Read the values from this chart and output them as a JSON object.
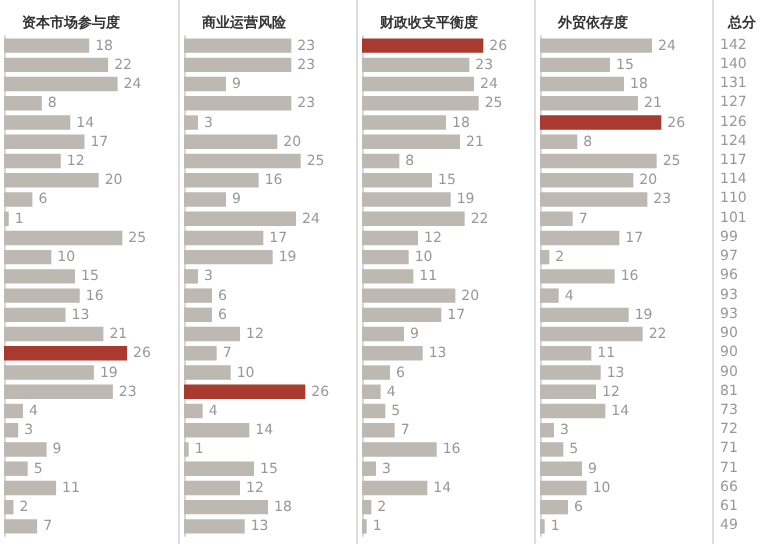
{
  "chart_data": [
    {
      "type": "bar",
      "orientation": "horizontal",
      "title": "资本市场参与度",
      "data_labels": true,
      "categories": [
        null,
        null,
        null,
        null,
        null,
        null,
        null,
        null,
        null,
        null,
        null,
        null,
        null,
        null,
        null,
        null,
        null,
        null,
        null,
        null,
        null,
        null,
        null,
        null,
        null,
        null
      ],
      "values": [
        18,
        22,
        24,
        8,
        14,
        17,
        12,
        20,
        6,
        1,
        25,
        10,
        15,
        16,
        13,
        21,
        26,
        19,
        23,
        4,
        3,
        9,
        5,
        11,
        2,
        7
      ],
      "colors": [
        "#bdb8b2",
        "#bdb8b2",
        "#bdb8b2",
        "#bdb8b2",
        "#bdb8b2",
        "#bdb8b2",
        "#bdb8b2",
        "#bdb8b2",
        "#bdb8b2",
        "#bdb8b2",
        "#bdb8b2",
        "#bdb8b2",
        "#bdb8b2",
        "#bdb8b2",
        "#bdb8b2",
        "#bdb8b2",
        "#a83a30",
        "#bdb8b2",
        "#bdb8b2",
        "#bdb8b2",
        "#bdb8b2",
        "#bdb8b2",
        "#bdb8b2",
        "#bdb8b2",
        "#bdb8b2",
        "#bdb8b2"
      ]
    },
    {
      "type": "bar",
      "orientation": "horizontal",
      "title": "商业运营风险",
      "data_labels": true,
      "categories": [
        null,
        null,
        null,
        null,
        null,
        null,
        null,
        null,
        null,
        null,
        null,
        null,
        null,
        null,
        null,
        null,
        null,
        null,
        null,
        null,
        null,
        null,
        null,
        null,
        null,
        null
      ],
      "values": [
        23,
        23,
        9,
        23,
        3,
        20,
        25,
        16,
        9,
        24,
        17,
        19,
        3,
        6,
        6,
        12,
        7,
        10,
        26,
        4,
        14,
        1,
        15,
        12,
        18,
        13
      ],
      "colors": [
        "#bdb8b2",
        "#bdb8b2",
        "#bdb8b2",
        "#bdb8b2",
        "#bdb8b2",
        "#bdb8b2",
        "#bdb8b2",
        "#bdb8b2",
        "#bdb8b2",
        "#bdb8b2",
        "#bdb8b2",
        "#bdb8b2",
        "#bdb8b2",
        "#bdb8b2",
        "#bdb8b2",
        "#bdb8b2",
        "#bdb8b2",
        "#bdb8b2",
        "#a83a30",
        "#bdb8b2",
        "#bdb8b2",
        "#bdb8b2",
        "#bdb8b2",
        "#bdb8b2",
        "#bdb8b2",
        "#bdb8b2"
      ]
    },
    {
      "type": "bar",
      "orientation": "horizontal",
      "title": "财政收支平衡度",
      "data_labels": true,
      "categories": [
        null,
        null,
        null,
        null,
        null,
        null,
        null,
        null,
        null,
        null,
        null,
        null,
        null,
        null,
        null,
        null,
        null,
        null,
        null,
        null,
        null,
        null,
        null,
        null,
        null,
        null
      ],
      "values": [
        26,
        23,
        24,
        25,
        18,
        21,
        8,
        15,
        19,
        22,
        12,
        10,
        11,
        20,
        17,
        9,
        13,
        6,
        4,
        5,
        7,
        16,
        3,
        14,
        2,
        1
      ],
      "colors": [
        "#a83a30",
        "#bdb8b2",
        "#bdb8b2",
        "#bdb8b2",
        "#bdb8b2",
        "#bdb8b2",
        "#bdb8b2",
        "#bdb8b2",
        "#bdb8b2",
        "#bdb8b2",
        "#bdb8b2",
        "#bdb8b2",
        "#bdb8b2",
        "#bdb8b2",
        "#bdb8b2",
        "#bdb8b2",
        "#bdb8b2",
        "#bdb8b2",
        "#bdb8b2",
        "#bdb8b2",
        "#bdb8b2",
        "#bdb8b2",
        "#bdb8b2",
        "#bdb8b2",
        "#bdb8b2",
        "#bdb8b2"
      ]
    },
    {
      "type": "bar",
      "orientation": "horizontal",
      "title": "外贸依存度",
      "data_labels": true,
      "categories": [
        null,
        null,
        null,
        null,
        null,
        null,
        null,
        null,
        null,
        null,
        null,
        null,
        null,
        null,
        null,
        null,
        null,
        null,
        null,
        null,
        null,
        null,
        null,
        null,
        null,
        null
      ],
      "values": [
        24,
        15,
        18,
        21,
        26,
        8,
        25,
        20,
        23,
        7,
        17,
        2,
        16,
        4,
        19,
        22,
        11,
        13,
        12,
        14,
        3,
        5,
        9,
        10,
        6,
        1
      ],
      "colors": [
        "#bdb8b2",
        "#bdb8b2",
        "#bdb8b2",
        "#bdb8b2",
        "#a83a30",
        "#bdb8b2",
        "#bdb8b2",
        "#bdb8b2",
        "#bdb8b2",
        "#bdb8b2",
        "#bdb8b2",
        "#bdb8b2",
        "#bdb8b2",
        "#bdb8b2",
        "#bdb8b2",
        "#bdb8b2",
        "#bdb8b2",
        "#bdb8b2",
        "#bdb8b2",
        "#bdb8b2",
        "#bdb8b2",
        "#bdb8b2",
        "#bdb8b2",
        "#bdb8b2",
        "#bdb8b2",
        "#bdb8b2"
      ]
    },
    {
      "type": "other",
      "title": "总分",
      "annotations": [
        "142",
        "140",
        "131",
        "127",
        "126",
        "124",
        "117",
        "114",
        "110",
        "101",
        "99",
        "97",
        "96",
        "93",
        "93",
        "90",
        "90",
        "90",
        "81",
        "73",
        "72",
        "71",
        "71",
        "66",
        "61",
        "49"
      ]
    }
  ]
}
